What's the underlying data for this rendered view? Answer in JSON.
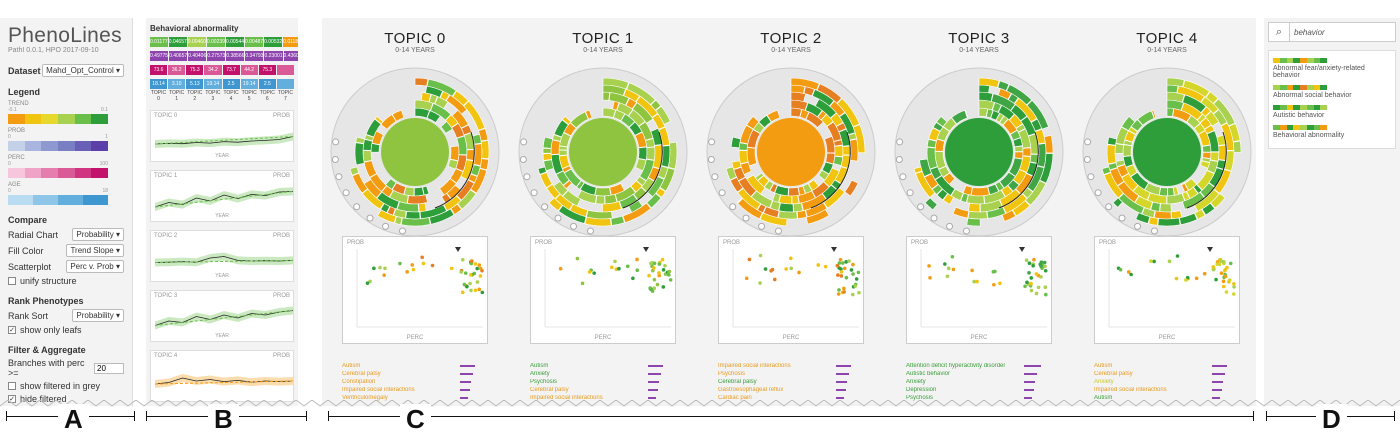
{
  "app": {
    "title": "PhenoLines",
    "subtitle": "PathI 0.0.1, HPO 2017-09-10"
  },
  "controls": {
    "dataset_label": "Dataset",
    "dataset_value": "Mahd_Opt_Control",
    "legend_label": "Legend",
    "legend": [
      {
        "name": "TREND",
        "min": "-0.1",
        "max": "0.1",
        "colors": [
          "#f39c12",
          "#f1c40f",
          "#e6d82c",
          "#a8d14f",
          "#6abf4b",
          "#2e9e3b"
        ]
      },
      {
        "name": "PROB",
        "min": "0",
        "max": "1",
        "colors": [
          "#c4cfe8",
          "#a9b5de",
          "#8f99d1",
          "#7a7fc4",
          "#6a5fb7",
          "#5c3fa8"
        ]
      },
      {
        "name": "PERC",
        "min": "0",
        "max": "100",
        "colors": [
          "#f7c6dc",
          "#efa3c6",
          "#e57eae",
          "#da5a97",
          "#cf3580",
          "#c2126b"
        ]
      },
      {
        "name": "AGE",
        "min": "0",
        "max": "18",
        "colors": [
          "#b9dcf2",
          "#8ec5e8",
          "#62aedd",
          "#3e97d0"
        ]
      }
    ],
    "compare_label": "Compare",
    "radial_chart_label": "Radial Chart",
    "radial_chart_value": "Probability",
    "fill_color_label": "Fill Color",
    "fill_color_value": "Trend Slope",
    "scatterplot_label": "Scatterplot",
    "scatterplot_value": "Perc v. Prob",
    "unify_structure_label": "unify structure",
    "rank_label": "Rank Phenotypes",
    "rank_sort_label": "Rank Sort",
    "rank_sort_value": "Probability",
    "show_leafs_label": "show only leafs",
    "filter_label": "Filter & Aggregate",
    "branches_label": "Branches with perc >=",
    "branches_value": "20",
    "show_grey_label": "show filtered in grey",
    "hide_filtered_label": "hide filtered"
  },
  "behavior_panel": {
    "title": "Behavioral abnormality",
    "row_labels": [
      "TREND",
      "PROB",
      "PERC",
      "AGE"
    ],
    "trend_values": [
      "0.01177",
      "0.04657",
      "0.00460",
      "0.00239",
      "0.00544",
      "0.00487",
      "0.00532",
      "0.01182"
    ],
    "prob_values": [
      "0.49775",
      "0.40657",
      "0.40406",
      "0.27573",
      "0.38566",
      "0.34793",
      "0.23001",
      "0.43607"
    ],
    "perc_values": [
      "73.6",
      "36.2",
      "75.3",
      "34.2",
      "73.7",
      "44.2",
      "75.3",
      ""
    ],
    "age_values": [
      "18.14",
      "3.10",
      "5.13",
      "19.14",
      "2.5",
      "19.14",
      "2.5",
      ""
    ],
    "topic_labels": [
      "TOPIC 0",
      "TOPIC 1",
      "TOPIC 2",
      "TOPIC 3",
      "TOPIC 4",
      "TOPIC 5",
      "TOPIC 6",
      "TOPIC 7"
    ],
    "trend_charts": [
      {
        "title": "TOPIC 0",
        "right": "PROB",
        "xlabel": "YEAR",
        "series": [
          0.3,
          0.32,
          0.31,
          0.35,
          0.33,
          0.38,
          0.36,
          0.4,
          0.42,
          0.45,
          0.55
        ]
      },
      {
        "title": "TOPIC 1",
        "right": "PROB",
        "xlabel": "YEAR",
        "series": [
          0.2,
          0.35,
          0.28,
          0.5,
          0.4,
          0.6,
          0.48,
          0.62,
          0.58,
          0.7,
          0.72
        ]
      },
      {
        "title": "TOPIC 2",
        "right": "PROB",
        "xlabel": "YEAR",
        "series": [
          0.35,
          0.36,
          0.38,
          0.36,
          0.5,
          0.55,
          0.42,
          0.4,
          0.41,
          0.4,
          0.42
        ]
      },
      {
        "title": "TOPIC 3",
        "right": "PROB",
        "xlabel": "YEAR",
        "series": [
          0.25,
          0.4,
          0.35,
          0.55,
          0.45,
          0.6,
          0.5,
          0.65,
          0.6,
          0.7,
          0.75
        ]
      },
      {
        "title": "TOPIC 4",
        "right": "PROB",
        "xlabel": "",
        "series": [
          0.3,
          0.35,
          0.5,
          0.4,
          0.45,
          0.38,
          0.42,
          0.36,
          0.4,
          0.38,
          0.4
        ]
      }
    ]
  },
  "topics": [
    {
      "title": "TOPIC 0",
      "sub": "0-14 YEARS",
      "center": "#8fc441",
      "scheme": [
        "#f39c12",
        "#f1c40f",
        "#e67e22",
        "#a8d14f",
        "#6abf4b",
        "#2e9e3b"
      ],
      "list": [
        [
          "Autism",
          "#e69b1f",
          0.55
        ],
        [
          "Cerebral palsy",
          "#e69b1f",
          0.45
        ],
        [
          "Constipation",
          "#e69b1f",
          0.4
        ],
        [
          "Impaired social interactions",
          "#e69b1f",
          0.35
        ],
        [
          "Ventriculomegaly",
          "#e69b1f",
          0.3
        ]
      ]
    },
    {
      "title": "TOPIC 1",
      "sub": "0-14 YEARS",
      "center": "#8fc441",
      "scheme": [
        "#a8d14f",
        "#6abf4b",
        "#2e9e3b",
        "#f39c12",
        "#f1c40f",
        "#8fc441"
      ],
      "list": [
        [
          "Autism",
          "#3a9d3a",
          0.55
        ],
        [
          "Anxiety",
          "#3a9d3a",
          0.45
        ],
        [
          "Psychosis",
          "#3a9d3a",
          0.4
        ],
        [
          "Cerebral palsy",
          "#e69b1f",
          0.35
        ],
        [
          "Impaired social interactions",
          "#e69b1f",
          0.3
        ]
      ]
    },
    {
      "title": "TOPIC 2",
      "sub": "0-14 YEARS",
      "center": "#f39c12",
      "scheme": [
        "#f39c12",
        "#e67e22",
        "#f1c40f",
        "#6abf4b",
        "#2e9e3b",
        "#a8d14f"
      ],
      "list": [
        [
          "Impaired social interactions",
          "#e69b1f",
          0.55
        ],
        [
          "Psychosis",
          "#e69b1f",
          0.45
        ],
        [
          "Cerebral palsy",
          "#3a9d3a",
          0.4
        ],
        [
          "Gastroesophageal reflux",
          "#e69b1f",
          0.35
        ],
        [
          "Cardiac pain",
          "#e69b1f",
          0.3
        ]
      ]
    },
    {
      "title": "TOPIC 3",
      "sub": "0-14 YEARS",
      "center": "#2e9e3b",
      "scheme": [
        "#2e9e3b",
        "#6abf4b",
        "#a8d14f",
        "#f39c12",
        "#f1c40f",
        "#3fa545"
      ],
      "list": [
        [
          "Attention deficit hyperactivity disorder",
          "#3a9d3a",
          0.6
        ],
        [
          "Autistic behavior",
          "#3a9d3a",
          0.45
        ],
        [
          "Anxiety",
          "#3a9d3a",
          0.4
        ],
        [
          "Depression",
          "#3a9d3a",
          0.35
        ],
        [
          "Psychosis",
          "#3a9d3a",
          0.3
        ]
      ]
    },
    {
      "title": "TOPIC 4",
      "sub": "0-14 YEARS",
      "center": "#2e9e3b",
      "scheme": [
        "#a8d14f",
        "#f1c40f",
        "#f39c12",
        "#6abf4b",
        "#2e9e3b",
        "#d4d62a"
      ],
      "list": [
        [
          "Autism",
          "#e69b1f",
          0.55
        ],
        [
          "Cerebral palsy",
          "#e69b1f",
          0.45
        ],
        [
          "Anxiety",
          "#c9c92a",
          0.4
        ],
        [
          "Impaired social interactions",
          "#e69b1f",
          0.35
        ],
        [
          "Autism",
          "#3a9d3a",
          0.3
        ]
      ]
    }
  ],
  "scatter_labels": {
    "y": "PROB",
    "x": "PERC"
  },
  "search": {
    "value": "behavior"
  },
  "results": [
    {
      "text": "Abnormal fear/anxiety-related behavior",
      "colors": [
        "#f1c40f",
        "#6abf4b",
        "#a8d14f",
        "#2e9e3b",
        "#f39c12",
        "#a8d14f",
        "#6abf4b",
        "#2e9e3b"
      ]
    },
    {
      "text": "Abnormal social behavior",
      "colors": [
        "#a8d14f",
        "#6abf4b",
        "#f39c12",
        "#2e9e3b",
        "#e67e22",
        "#a8d14f",
        "#f1c40f",
        "#2e9e3b"
      ]
    },
    {
      "text": "Autistic behavior",
      "colors": [
        "#2e9e3b",
        "#6abf4b",
        "#f1c40f",
        "#2e9e3b",
        "#a8d14f",
        "#6abf4b",
        "#2e9e3b",
        "#a8d14f"
      ]
    },
    {
      "text": "Behavioral abnormality",
      "colors": [
        "#6abf4b",
        "#f39c12",
        "#2e9e3b",
        "#f1c40f",
        "#a8d14f",
        "#2e9e3b",
        "#6abf4b",
        "#f39c12"
      ]
    }
  ],
  "panel_labels": [
    "A",
    "B",
    "C",
    "D"
  ]
}
